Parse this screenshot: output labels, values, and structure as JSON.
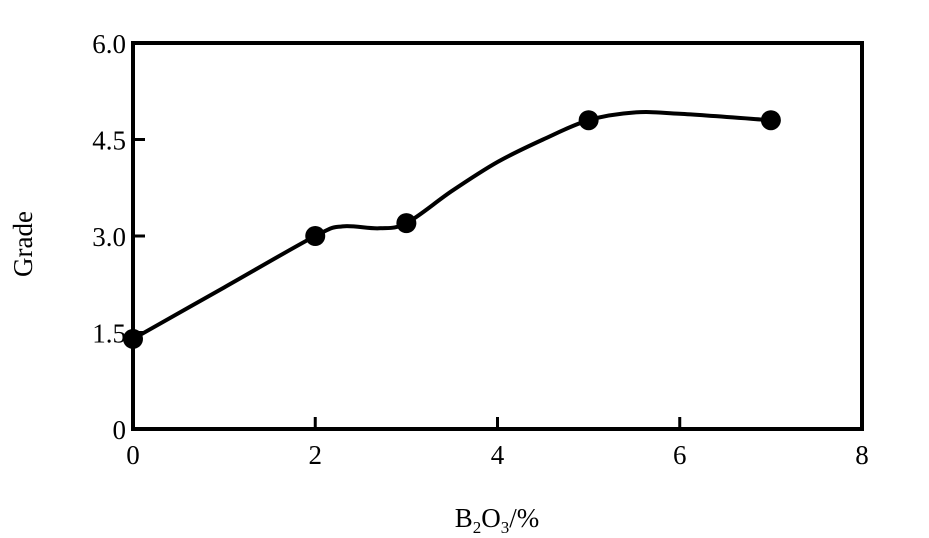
{
  "chart_data": {
    "type": "line",
    "xlabel": {
      "base": "B",
      "sub1": "2",
      "mid": "O",
      "sub2": "3",
      "tail": "/%"
    },
    "ylabel": "Grade",
    "xlim": [
      0,
      8
    ],
    "ylim": [
      0,
      6
    ],
    "xticks": [
      0,
      2,
      4,
      6,
      8
    ],
    "xtick_labels": [
      "0",
      "2",
      "4",
      "6",
      "8"
    ],
    "yticks": [
      0,
      1.5,
      3.0,
      4.5,
      6.0
    ],
    "ytick_labels": [
      "0",
      "1.5",
      "3.0",
      "4.5",
      "6.0"
    ],
    "grid": false,
    "series": [
      {
        "x": [
          0,
          2,
          3,
          5,
          7
        ],
        "y": [
          1.4,
          3.0,
          3.2,
          4.8,
          4.8
        ],
        "marker": "filled-circle",
        "color": "#000000"
      }
    ],
    "curve_points": [
      [
        0,
        1.4
      ],
      [
        1,
        2.2
      ],
      [
        2,
        3.0
      ],
      [
        2.3,
        3.15
      ],
      [
        2.7,
        3.12
      ],
      [
        3,
        3.2
      ],
      [
        3.5,
        3.7
      ],
      [
        4,
        4.15
      ],
      [
        4.5,
        4.5
      ],
      [
        5,
        4.8
      ],
      [
        5.5,
        4.92
      ],
      [
        6,
        4.9
      ],
      [
        7,
        4.8
      ]
    ]
  }
}
